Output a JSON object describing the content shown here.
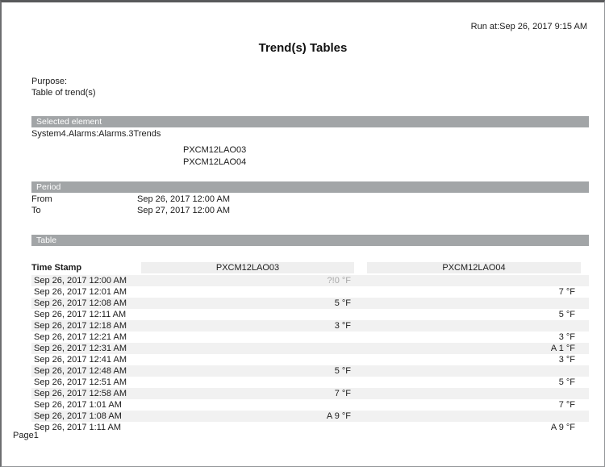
{
  "report": {
    "run_at": "Run at:Sep 26, 2017 9:15 AM",
    "title": "Trend(s) Tables",
    "purpose_label": "Purpose:",
    "purpose_value": "Table of trend(s)",
    "page_label": "Page1"
  },
  "sections": {
    "selected_element": {
      "header": "Selected element",
      "path": "System4.Alarms:Alarms.3Trends",
      "trend_names": [
        "PXCM12LAO03",
        "PXCM12LAO04"
      ]
    },
    "period": {
      "header": "Period",
      "rows": [
        {
          "label": "From",
          "value": "Sep 26, 2017 12:00 AM"
        },
        {
          "label": "To",
          "value": "Sep 27, 2017 12:00 AM"
        }
      ]
    },
    "table": {
      "header": "Table",
      "columns": [
        "Time Stamp",
        "PXCM12LAO03",
        "PXCM12LAO04"
      ],
      "rows": [
        {
          "time": "Sep 26, 2017 12:00 AM",
          "pxcm12lao03": "?!0 °F",
          "pxcm12lao04": "",
          "muted": true
        },
        {
          "time": "Sep 26, 2017 12:01 AM",
          "pxcm12lao03": "",
          "pxcm12lao04": "7 °F",
          "muted": false
        },
        {
          "time": "Sep 26, 2017 12:08 AM",
          "pxcm12lao03": "5 °F",
          "pxcm12lao04": "",
          "muted": false
        },
        {
          "time": "Sep 26, 2017 12:11 AM",
          "pxcm12lao03": "",
          "pxcm12lao04": "5 °F",
          "muted": false
        },
        {
          "time": "Sep 26, 2017 12:18 AM",
          "pxcm12lao03": "3 °F",
          "pxcm12lao04": "",
          "muted": false
        },
        {
          "time": "Sep 26, 2017 12:21 AM",
          "pxcm12lao03": "",
          "pxcm12lao04": "3 °F",
          "muted": false
        },
        {
          "time": "Sep 26, 2017 12:31 AM",
          "pxcm12lao03": "",
          "pxcm12lao04": "A 1 °F",
          "muted": false
        },
        {
          "time": "Sep 26, 2017 12:41 AM",
          "pxcm12lao03": "",
          "pxcm12lao04": "3 °F",
          "muted": false
        },
        {
          "time": "Sep 26, 2017 12:48 AM",
          "pxcm12lao03": "5 °F",
          "pxcm12lao04": "",
          "muted": false
        },
        {
          "time": "Sep 26, 2017 12:51 AM",
          "pxcm12lao03": "",
          "pxcm12lao04": "5 °F",
          "muted": false
        },
        {
          "time": "Sep 26, 2017 12:58 AM",
          "pxcm12lao03": "7 °F",
          "pxcm12lao04": "",
          "muted": false
        },
        {
          "time": "Sep 26, 2017 1:01 AM",
          "pxcm12lao03": "",
          "pxcm12lao04": "7 °F",
          "muted": false
        },
        {
          "time": "Sep 26, 2017 1:08 AM",
          "pxcm12lao03": "A 9 °F",
          "pxcm12lao04": "",
          "muted": false
        },
        {
          "time": "Sep 26, 2017 1:11 AM",
          "pxcm12lao03": "",
          "pxcm12lao04": "A 9 °F",
          "muted": false
        }
      ]
    }
  },
  "colors": {
    "section_bar": "#a2a5a7",
    "row_stripe": "#f1f1f1",
    "column_strip": "#efefef",
    "muted_text": "#a9a9a9",
    "page_border": "#6d6e70"
  }
}
